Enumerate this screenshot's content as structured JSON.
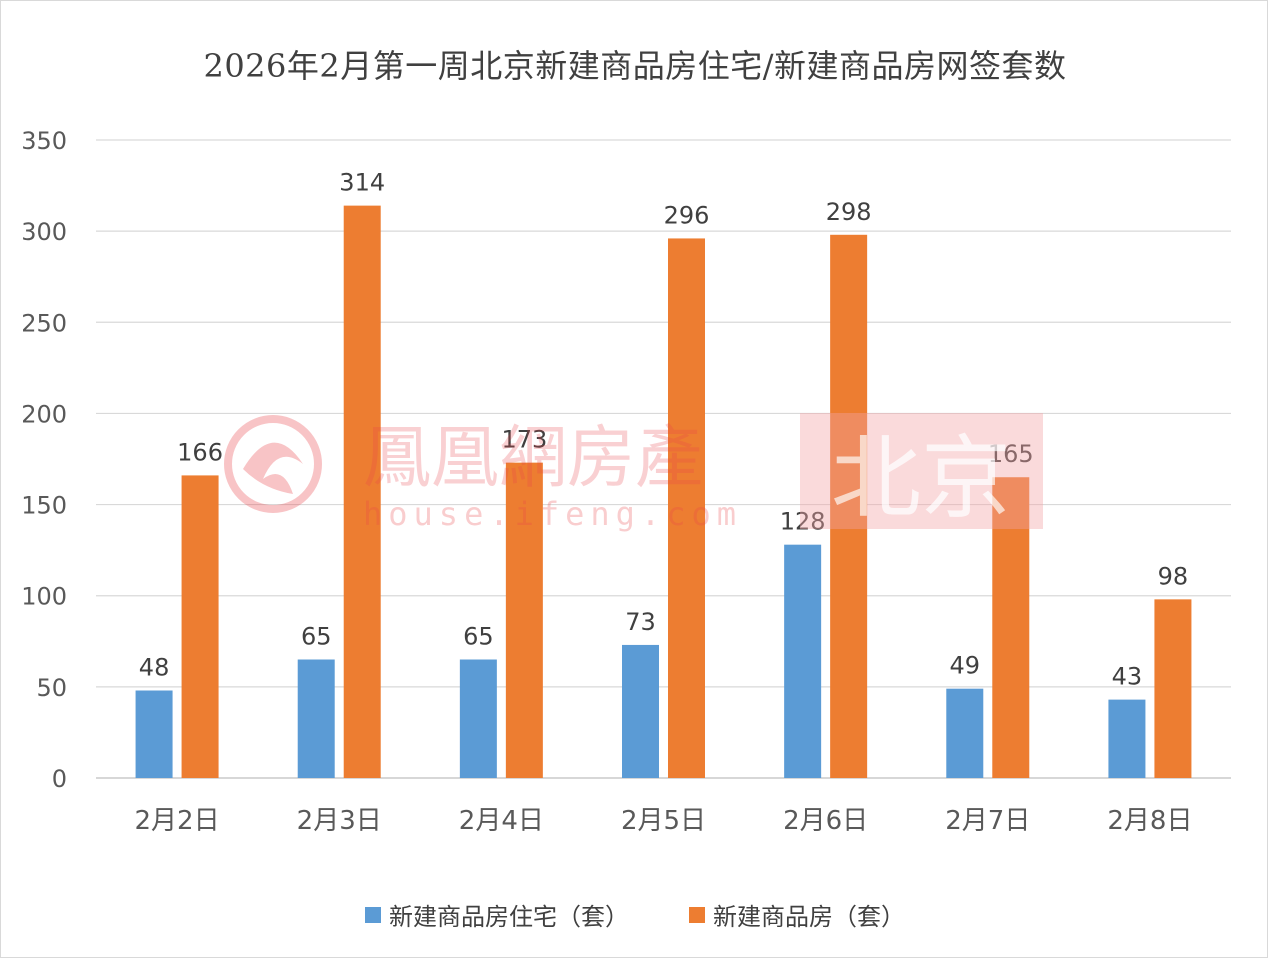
{
  "chart_data": {
    "type": "bar",
    "title": "2026年2月第一周北京新建商品房住宅/新建商品房网签套数",
    "categories": [
      "2月2日",
      "2月3日",
      "2月4日",
      "2月5日",
      "2月6日",
      "2月7日",
      "2月8日"
    ],
    "series": [
      {
        "name": "新建商品房住宅（套）",
        "values": [
          48,
          65,
          65,
          73,
          128,
          49,
          43
        ],
        "color": "#5b9bd5"
      },
      {
        "name": "新建商品房（套）",
        "values": [
          166,
          314,
          173,
          296,
          298,
          165,
          98
        ],
        "color": "#ed7d31"
      }
    ],
    "ylim": [
      0,
      350
    ],
    "yticks": [
      0,
      50,
      100,
      150,
      200,
      250,
      300,
      350
    ],
    "xlabel": "",
    "ylabel": "",
    "grid": true,
    "legend_position": "bottom",
    "data_labels": true
  },
  "watermark": {
    "logo_text": "鳳凰網房產",
    "city_text": "北京",
    "url_text": "house.ifeng.com"
  }
}
